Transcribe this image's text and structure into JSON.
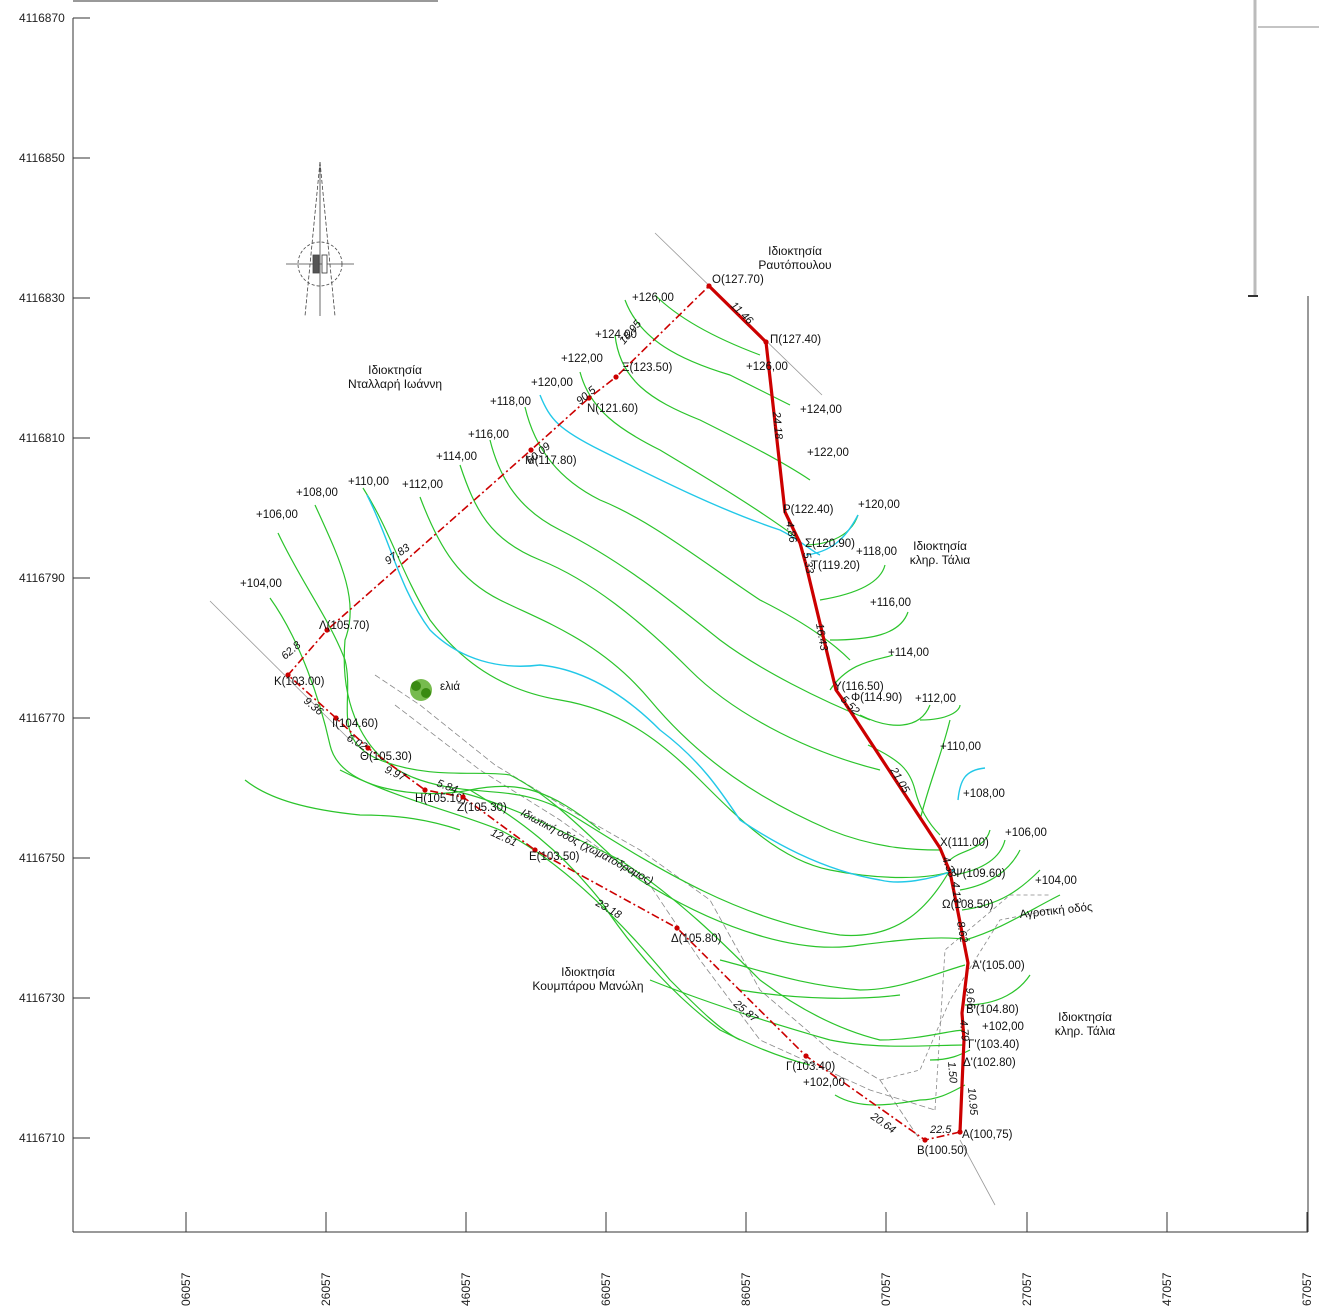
{
  "colors": {
    "boundary": "#cc0000",
    "contour": "#2bc42b",
    "index_contour": "#22c8e8",
    "frame": "#333333",
    "road": "#888888"
  },
  "y_ticks": [
    "4116870",
    "4116850",
    "4116830",
    "4116810",
    "4116790",
    "4116770",
    "4116750",
    "4116730",
    "4116710"
  ],
  "x_ticks": [
    "06057",
    "26057",
    "46057",
    "66057",
    "86057",
    "07057",
    "27057",
    "47057",
    "67057"
  ],
  "property_labels": [
    [
      "Ιδιοκτησία",
      "Ραυτόπουλου"
    ],
    [
      "Ιδιοκτησία",
      "Νταλλαρή Ιωάννη"
    ],
    [
      "Ιδιοκτησία",
      "κληρ. Τάλια"
    ],
    [
      "Ιδιοκτησία",
      "Κουμπάρου Μανώλη"
    ],
    [
      "Ιδιοκτησία",
      "κληρ. Τάλια"
    ]
  ],
  "road_labels": [
    "Ιδιωτική οδός (χωματόδρομος)",
    "Αγροτική οδός"
  ],
  "tree_label": "ελιά",
  "points": [
    "O(127.70)",
    "Π(127.40)",
    "Ξ(123.50)",
    "N(121.60)",
    "M(117.80)",
    "Λ(105.70)",
    "K(103.00)",
    "I(104.60)",
    "Θ(105.30)",
    "H(105.10)",
    "Z(105.30)",
    "E(103.50)",
    "Δ(105.80)",
    "Γ(103.40)",
    "B(100.50)",
    "A(100,75)",
    "Ρ(122.40)",
    "Σ(120.90)",
    "T(119.20)",
    "Y(116.50)",
    "Φ(114.90)",
    "X(111.00)",
    "Ψ(109.60)",
    "Ω(108.50)",
    "A'(105.00)",
    "B'(104.80)",
    "Γ'(103.40)",
    "Δ'(102.80)"
  ],
  "contour_labels_left": [
    "+126,00",
    "+124,00",
    "+122,00",
    "+120,00",
    "+118,00",
    "+116,00",
    "+114,00",
    "+112,00",
    "+110,00",
    "+108,00",
    "+106,00",
    "+104,00"
  ],
  "contour_labels_right": [
    "+126,00",
    "+124,00",
    "+122,00",
    "+120,00",
    "+118,00",
    "+116,00",
    "+114,00",
    "+112,00",
    "+110,00",
    "+108,00",
    "+106,00",
    "+104,00",
    "+102,00",
    "+102,00"
  ],
  "distances": [
    "11.46",
    "24.18",
    "4.86",
    "5.33",
    "16.43",
    "5.52",
    "21.05",
    "4.38",
    "4.13",
    "8.62",
    "9.66",
    "4.79",
    "1.50",
    "10.95",
    "22.5",
    "20.64",
    "25.87",
    "23.18",
    "12.61",
    "5.84",
    "9.97",
    "6.02",
    "9.36",
    "62.8",
    "97.83",
    "60.09",
    "90.5",
    "18.95"
  ]
}
